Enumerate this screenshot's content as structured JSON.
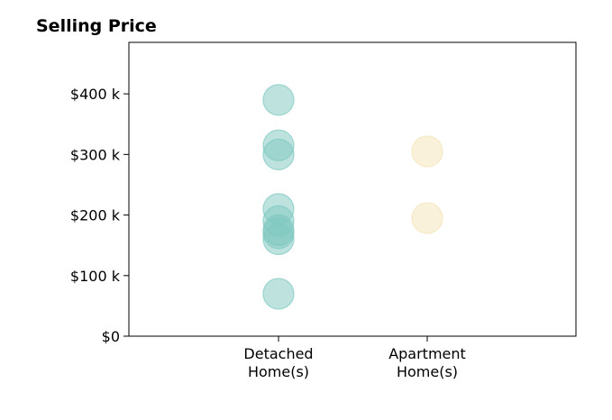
{
  "chart_data": {
    "type": "scatter",
    "title": "Selling Price",
    "xlabel": "",
    "ylabel": "",
    "categories": [
      "Detached\nHome(s)",
      "Apartment\nHome(s)"
    ],
    "ylim": [
      0,
      485000
    ],
    "y_ticks": [
      0,
      100000,
      200000,
      300000,
      400000
    ],
    "y_tick_labels": [
      "$0",
      "$100 k",
      "$200 k",
      "$300 k",
      "$400 k"
    ],
    "grid": false,
    "legend": "none",
    "series": [
      {
        "category": "Detached\nHome(s)",
        "color": "#7ec8c0",
        "values": [
          390000,
          315000,
          300000,
          210000,
          190000,
          175000,
          170000,
          160000,
          70000
        ]
      },
      {
        "category": "Apartment\nHome(s)",
        "color": "#f5e3b5",
        "values": [
          305000,
          195000
        ]
      }
    ]
  }
}
